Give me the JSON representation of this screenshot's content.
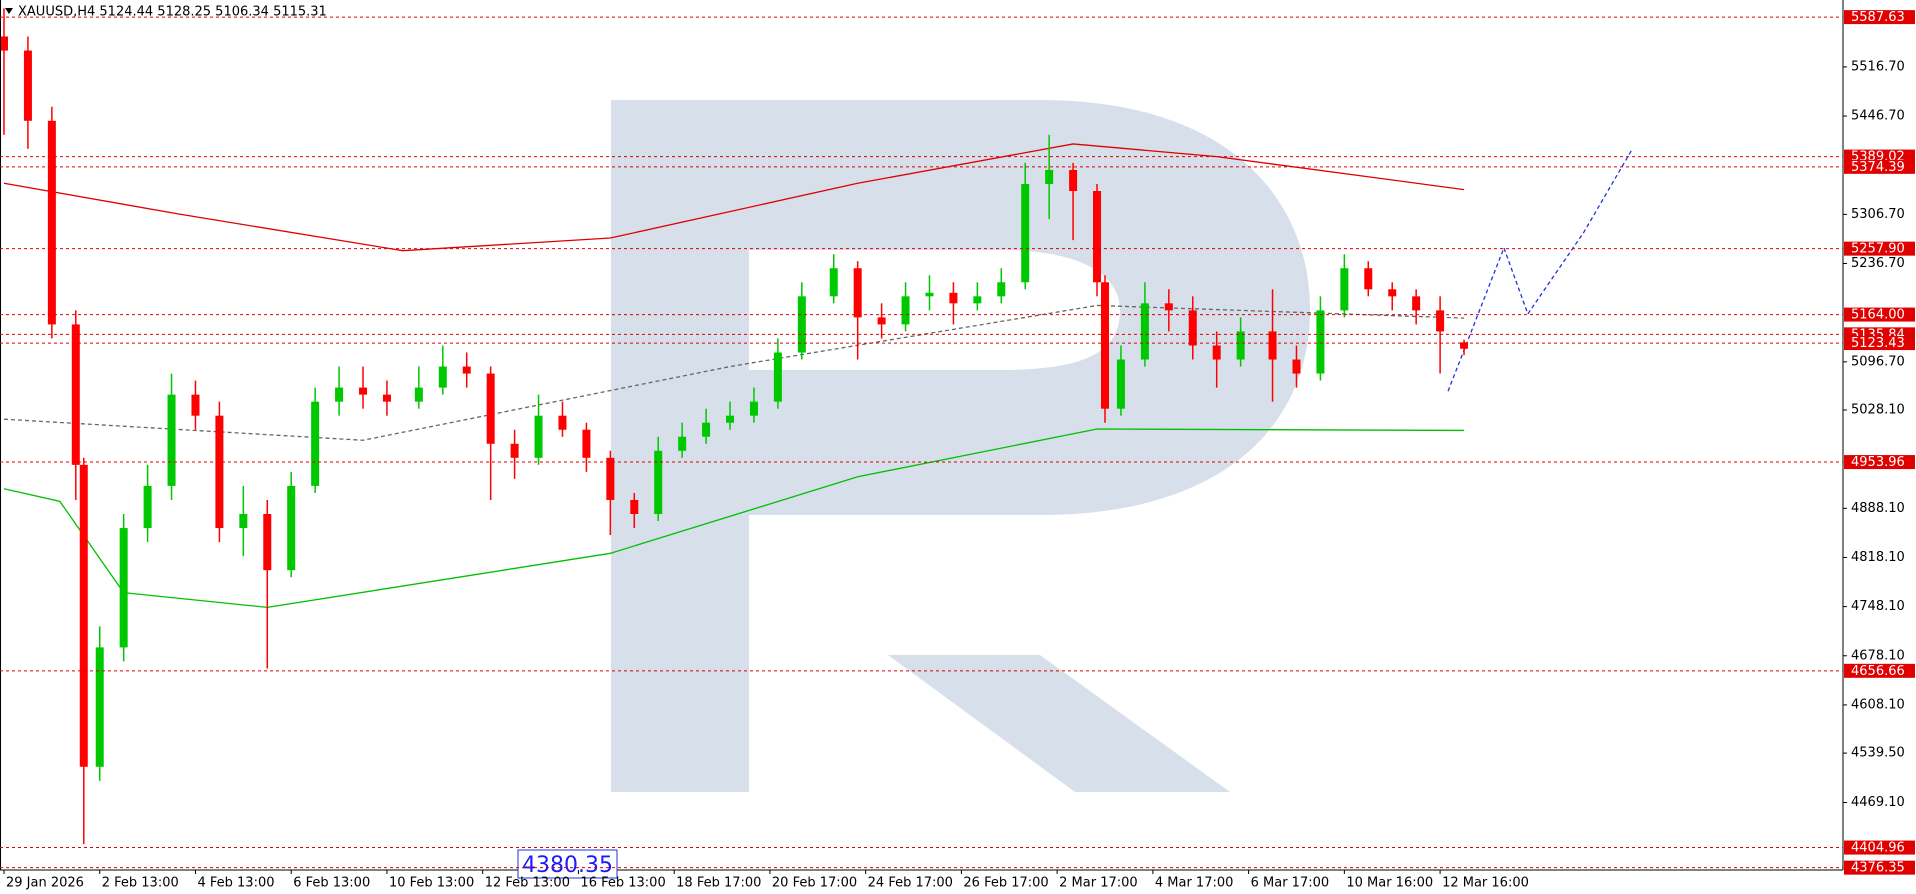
{
  "chart_data": {
    "type": "candlestick",
    "title": "XAUUSD,H4  5124.44 5128.25 5106.34 5115.31",
    "xlim": [
      -0.5,
      230.5
    ],
    "ylim": [
      4373,
      5612
    ],
    "up_color": "#00c800",
    "down_color": "#ff0000",
    "grid": false,
    "candles": {
      "x": [
        0,
        3,
        6,
        9,
        10,
        12,
        15,
        18,
        21,
        24,
        27,
        30,
        33,
        36,
        39,
        42,
        45,
        48,
        52,
        55,
        58,
        61,
        64,
        67,
        70,
        73,
        76,
        79,
        82,
        85,
        88,
        91,
        94,
        97,
        100,
        104,
        107,
        110,
        113,
        116,
        119,
        122,
        125,
        128,
        131,
        134,
        137,
        138,
        140,
        143,
        146,
        149,
        152,
        155,
        159,
        162,
        165,
        168,
        171,
        174,
        177,
        180,
        183
      ],
      "open": [
        5560,
        5540,
        5440,
        5150,
        4950,
        4520,
        4690,
        4860,
        4920,
        5050,
        5020,
        4860,
        4880,
        4800,
        4920,
        5040,
        5060,
        5050,
        5040,
        5060,
        5090,
        5080,
        4980,
        4960,
        5020,
        5000,
        4960,
        4900,
        4880,
        4970,
        4990,
        5010,
        5020,
        5040,
        5110,
        5190,
        5230,
        5160,
        5150,
        5190,
        5195,
        5180,
        5190,
        5210,
        5350,
        5370,
        5340,
        5210,
        5030,
        5100,
        5180,
        5170,
        5120,
        5100,
        5140,
        5100,
        5080,
        5170,
        5230,
        5200,
        5190,
        5170,
        5124.44
      ],
      "high": [
        5600,
        5560,
        5460,
        5170,
        4960,
        4720,
        4880,
        4950,
        5080,
        5070,
        5040,
        4920,
        4900,
        4940,
        5060,
        5090,
        5090,
        5070,
        5090,
        5120,
        5110,
        5090,
        5000,
        5050,
        5040,
        5010,
        4970,
        4910,
        4990,
        5010,
        5030,
        5040,
        5060,
        5130,
        5210,
        5250,
        5240,
        5180,
        5210,
        5220,
        5210,
        5210,
        5230,
        5380,
        5420,
        5380,
        5350,
        5220,
        5120,
        5210,
        5200,
        5190,
        5140,
        5160,
        5200,
        5120,
        5190,
        5250,
        5240,
        5210,
        5200,
        5190,
        5128.25
      ],
      "low": [
        5420,
        5400,
        5130,
        4900,
        4410,
        4500,
        4670,
        4840,
        4900,
        5000,
        4840,
        4820,
        4660,
        4790,
        4910,
        5020,
        5030,
        5020,
        5030,
        5050,
        5060,
        4900,
        4930,
        4950,
        4990,
        4940,
        4850,
        4860,
        4870,
        4960,
        4980,
        5000,
        5010,
        5030,
        5100,
        5180,
        5100,
        5130,
        5140,
        5170,
        5150,
        5170,
        5180,
        5200,
        5300,
        5270,
        5190,
        5010,
        5020,
        5090,
        5140,
        5100,
        5060,
        5090,
        5040,
        5060,
        5070,
        5160,
        5190,
        5170,
        5150,
        5080,
        5106.34
      ],
      "close": [
        5540,
        5440,
        5150,
        4950,
        4520,
        4690,
        4860,
        4920,
        5050,
        5020,
        4860,
        4880,
        4800,
        4920,
        5040,
        5060,
        5050,
        5040,
        5060,
        5090,
        5080,
        4980,
        4960,
        5020,
        5000,
        4960,
        4900,
        4880,
        4970,
        4990,
        5010,
        5020,
        5040,
        5110,
        5190,
        5230,
        5160,
        5150,
        5190,
        5195,
        5180,
        5190,
        5210,
        5350,
        5370,
        5340,
        5210,
        5030,
        5100,
        5180,
        5170,
        5120,
        5100,
        5140,
        5100,
        5080,
        5170,
        5230,
        5200,
        5190,
        5170,
        5140,
        5115.31
      ]
    },
    "series": [
      {
        "color": "#e00000",
        "dash": false,
        "x": [
          0,
          22,
          50,
          76,
          107,
          134,
          152,
          183
        ],
        "values": [
          5351,
          5307,
          5255,
          5273,
          5351,
          5407,
          5389,
          5342
        ]
      },
      {
        "color": "#00c000",
        "dash": false,
        "x": [
          0,
          7,
          15,
          33,
          76,
          107,
          137,
          183
        ],
        "values": [
          4916,
          4898,
          4768,
          4747,
          4824,
          4933,
          5001,
          4999
        ]
      },
      {
        "color": "#666666",
        "dash": true,
        "x": [
          0,
          45,
          91,
          137,
          183
        ],
        "values": [
          5015,
          4985,
          5090,
          5177,
          5159
        ]
      },
      {
        "color": "#2030e0",
        "dash": true,
        "x": [
          181,
          188,
          191,
          198,
          204
        ],
        "values": [
          5055,
          5259,
          5165,
          5281,
          5398
        ]
      }
    ],
    "yticks": [
      {
        "value": 5516.7,
        "label": "5516.70"
      },
      {
        "value": 5446.7,
        "label": "5446.70"
      },
      {
        "value": 5306.7,
        "label": "5306.70"
      },
      {
        "value": 5236.7,
        "label": "5236.70"
      },
      {
        "value": 5096.7,
        "label": "5096.70"
      },
      {
        "value": 5028.1,
        "label": "5028.10"
      },
      {
        "value": 4888.1,
        "label": "4888.10"
      },
      {
        "value": 4818.1,
        "label": "4818.10"
      },
      {
        "value": 4748.1,
        "label": "4748.10"
      },
      {
        "value": 4678.1,
        "label": "4678.10"
      },
      {
        "value": 4608.1,
        "label": "4608.10"
      },
      {
        "value": 4539.5,
        "label": "4539.50"
      },
      {
        "value": 4469.1,
        "label": "4469.10"
      }
    ],
    "levels_color": "#e00000",
    "levels": [
      {
        "value": 5587.63,
        "label": "5587.63"
      },
      {
        "value": 5389.02,
        "label": "5389.02"
      },
      {
        "value": 5374.39,
        "label": "5374.39"
      },
      {
        "value": 5257.9,
        "label": "5257.90"
      },
      {
        "value": 5164,
        "label": "5164.00"
      },
      {
        "value": 5135.84,
        "label": "5135.84"
      },
      {
        "value": 5123.43,
        "label": "5123.43"
      },
      {
        "value": 4953.96,
        "label": "4953.96"
      },
      {
        "value": 4656.66,
        "label": "4656.66"
      },
      {
        "value": 4404.96,
        "label": "4404.96"
      },
      {
        "value": 4376.35,
        "label": "4376.35"
      }
    ],
    "xticks": [
      {
        "value": 0,
        "label": "29 Jan 2026"
      },
      {
        "value": 12,
        "label": "2 Feb 13:00"
      },
      {
        "value": 24,
        "label": "4 Feb 13:00"
      },
      {
        "value": 36,
        "label": "6 Feb 13:00"
      },
      {
        "value": 48,
        "label": "10 Feb 13:00"
      },
      {
        "value": 60,
        "label": "12 Feb 13:00"
      },
      {
        "value": 72,
        "label": "16 Feb 13:00"
      },
      {
        "value": 84,
        "label": "18 Feb 17:00"
      },
      {
        "value": 96,
        "label": "20 Feb 17:00"
      },
      {
        "value": 108,
        "label": "24 Feb 17:00"
      },
      {
        "value": 120,
        "label": "26 Feb 17:00"
      },
      {
        "value": 132,
        "label": "2 Mar 17:00"
      },
      {
        "value": 144,
        "label": "4 Mar 17:00"
      },
      {
        "value": 156,
        "label": "6 Mar 17:00"
      },
      {
        "value": 168,
        "label": "10 Mar 16:00"
      },
      {
        "value": 180,
        "label": "12 Mar 16:00"
      }
    ],
    "annotation": "4380.35"
  }
}
